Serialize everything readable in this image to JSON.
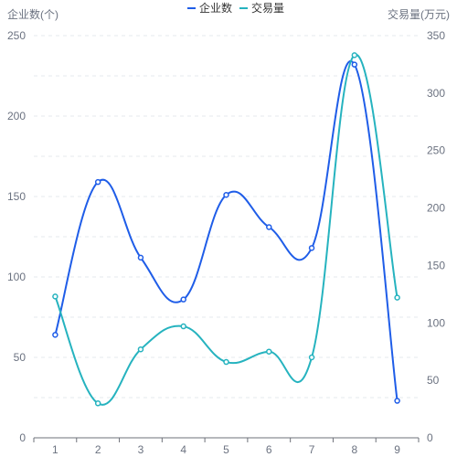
{
  "chart_data": {
    "type": "line",
    "categories": [
      "1",
      "2",
      "3",
      "4",
      "5",
      "6",
      "7",
      "8",
      "9"
    ],
    "series": [
      {
        "name": "企业数",
        "axis": "left",
        "color": "#1f5de8",
        "values": [
          64,
          159,
          112,
          86,
          151,
          131,
          118,
          232,
          23
        ]
      },
      {
        "name": "交易量",
        "axis": "right",
        "color": "#26b3bf",
        "values": [
          123,
          30,
          77,
          97,
          66,
          75,
          70,
          333,
          122
        ]
      }
    ],
    "y_left": {
      "label": "企业数(个)",
      "ylim": [
        0,
        250
      ],
      "ticks": [
        0,
        50,
        100,
        150,
        200,
        250
      ]
    },
    "y_right": {
      "label": "交易量(万元)",
      "ylim": [
        0,
        350
      ],
      "ticks": [
        0,
        50,
        100,
        150,
        200,
        250,
        300,
        350
      ]
    },
    "legend_position": "top-center",
    "grid": "dashed-horizontal",
    "smooth": true
  }
}
